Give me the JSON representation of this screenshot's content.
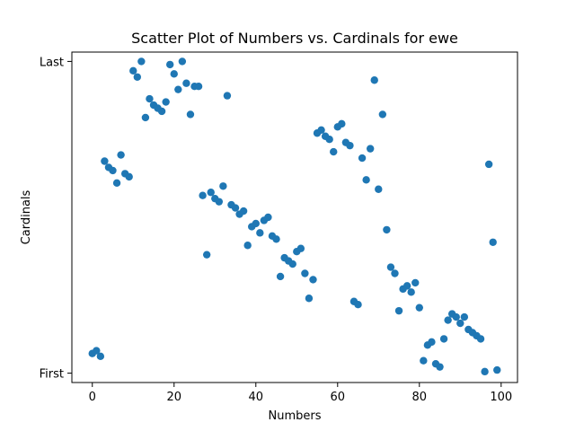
{
  "chart_data": {
    "type": "scatter",
    "title": "Scatter Plot of Numbers vs. Cardinals for ewe",
    "xlabel": "Numbers",
    "ylabel": "Cardinals",
    "xlim": [
      -5,
      104
    ],
    "ylim": [
      -0.03,
      1.03
    ],
    "x_ticks": [
      0,
      20,
      40,
      60,
      80,
      100
    ],
    "y_ticks": [
      {
        "value": 0,
        "label": "First"
      },
      {
        "value": 1,
        "label": "Last"
      }
    ],
    "grid": false,
    "marker_color": "#1f77b4",
    "x": [
      0,
      1,
      2,
      3,
      4,
      5,
      6,
      7,
      8,
      9,
      10,
      11,
      12,
      13,
      14,
      15,
      16,
      17,
      18,
      19,
      20,
      21,
      22,
      23,
      24,
      25,
      26,
      27,
      28,
      29,
      30,
      31,
      32,
      33,
      34,
      35,
      36,
      37,
      38,
      39,
      40,
      41,
      42,
      43,
      44,
      45,
      46,
      47,
      48,
      49,
      50,
      51,
      52,
      53,
      54,
      55,
      56,
      57,
      58,
      59,
      60,
      61,
      62,
      63,
      64,
      65,
      66,
      67,
      68,
      69,
      70,
      71,
      72,
      73,
      74,
      75,
      76,
      77,
      78,
      79,
      80,
      81,
      82,
      83,
      84,
      85,
      86,
      87,
      88,
      89,
      90,
      91,
      92,
      93,
      94,
      95,
      96,
      97,
      98,
      99
    ],
    "y": [
      0.063,
      0.072,
      0.054,
      0.68,
      0.66,
      0.65,
      0.61,
      0.7,
      0.64,
      0.63,
      0.97,
      0.95,
      1.0,
      0.82,
      0.88,
      0.86,
      0.85,
      0.84,
      0.87,
      0.99,
      0.96,
      0.91,
      1.0,
      0.93,
      0.83,
      0.92,
      0.92,
      0.57,
      0.38,
      0.58,
      0.56,
      0.55,
      0.6,
      0.89,
      0.54,
      0.53,
      0.51,
      0.52,
      0.41,
      0.47,
      0.48,
      0.45,
      0.49,
      0.5,
      0.44,
      0.43,
      0.31,
      0.37,
      0.36,
      0.35,
      0.39,
      0.4,
      0.32,
      0.24,
      0.3,
      0.77,
      0.78,
      0.76,
      0.75,
      0.71,
      0.79,
      0.8,
      0.74,
      0.73,
      0.23,
      0.22,
      0.69,
      0.62,
      0.72,
      0.94,
      0.59,
      0.83,
      0.46,
      0.34,
      0.32,
      0.2,
      0.27,
      0.28,
      0.26,
      0.29,
      0.21,
      0.04,
      0.09,
      0.1,
      0.03,
      0.02,
      0.11,
      0.17,
      0.19,
      0.18,
      0.16,
      0.18,
      0.14,
      0.13,
      0.12,
      0.11,
      0.005,
      0.67,
      0.42,
      0.01
    ]
  }
}
